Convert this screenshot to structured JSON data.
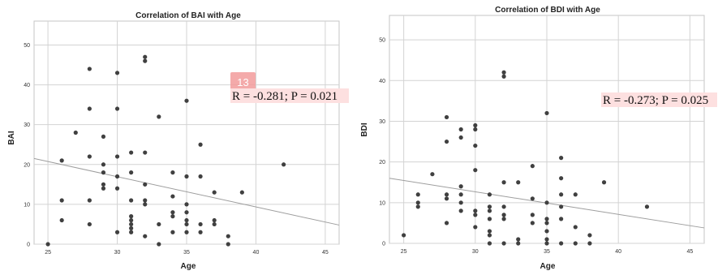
{
  "chart_data": [
    {
      "type": "scatter",
      "title": "Correlation of BAI with Age",
      "xlabel": "Age",
      "ylabel": "BAI",
      "xlim": [
        24,
        46
      ],
      "ylim": [
        0,
        56
      ],
      "xticks": [
        25,
        30,
        35,
        40,
        45
      ],
      "yticks": [
        0,
        10,
        20,
        30,
        40,
        50
      ],
      "grid": true,
      "annotation": "R = -0.281; P = 0.021",
      "marker_badge": "13",
      "fit_line": {
        "x": [
          24,
          46
        ],
        "y": [
          21.5,
          4.8
        ]
      },
      "points": [
        [
          25,
          0
        ],
        [
          26,
          21
        ],
        [
          26,
          11
        ],
        [
          26,
          6
        ],
        [
          27,
          28
        ],
        [
          28,
          44
        ],
        [
          28,
          34
        ],
        [
          28,
          22
        ],
        [
          28,
          11
        ],
        [
          28,
          5
        ],
        [
          29,
          27
        ],
        [
          29,
          20
        ],
        [
          29,
          18
        ],
        [
          29,
          15
        ],
        [
          29,
          14
        ],
        [
          30,
          43
        ],
        [
          30,
          34
        ],
        [
          30,
          22
        ],
        [
          30,
          17
        ],
        [
          30,
          14
        ],
        [
          30,
          3
        ],
        [
          31,
          23
        ],
        [
          31,
          18
        ],
        [
          31,
          11
        ],
        [
          31,
          7
        ],
        [
          31,
          6
        ],
        [
          31,
          5
        ],
        [
          31,
          4
        ],
        [
          31,
          3
        ],
        [
          32,
          47
        ],
        [
          32,
          46
        ],
        [
          32,
          23
        ],
        [
          32,
          15
        ],
        [
          32,
          11
        ],
        [
          32,
          10
        ],
        [
          32,
          2
        ],
        [
          33,
          32
        ],
        [
          33,
          5
        ],
        [
          33,
          0
        ],
        [
          34,
          18
        ],
        [
          34,
          12
        ],
        [
          34,
          8
        ],
        [
          34,
          7
        ],
        [
          34,
          3
        ],
        [
          35,
          36
        ],
        [
          35,
          17
        ],
        [
          35,
          10
        ],
        [
          35,
          8
        ],
        [
          35,
          6
        ],
        [
          35,
          5
        ],
        [
          35,
          3
        ],
        [
          36,
          25
        ],
        [
          36,
          17
        ],
        [
          36,
          5
        ],
        [
          36,
          3
        ],
        [
          37,
          13
        ],
        [
          37,
          6
        ],
        [
          37,
          5
        ],
        [
          38,
          2
        ],
        [
          38,
          0
        ],
        [
          39,
          13
        ],
        [
          42,
          20
        ]
      ]
    },
    {
      "type": "scatter",
      "title": "Correlation of BDI with Age",
      "xlabel": "Age",
      "ylabel": "BDI",
      "xlim": [
        24,
        46
      ],
      "ylim": [
        0,
        56
      ],
      "xticks": [
        25,
        30,
        35,
        40,
        45
      ],
      "yticks": [
        0,
        10,
        20,
        30,
        40,
        50
      ],
      "grid": true,
      "annotation": "R = -0.273; P = 0.025",
      "fit_line": {
        "x": [
          24,
          46
        ],
        "y": [
          16,
          3.8
        ]
      },
      "points": [
        [
          25,
          2
        ],
        [
          26,
          12
        ],
        [
          26,
          10
        ],
        [
          26,
          9
        ],
        [
          27,
          17
        ],
        [
          28,
          31
        ],
        [
          28,
          25
        ],
        [
          28,
          12
        ],
        [
          28,
          11
        ],
        [
          28,
          5
        ],
        [
          29,
          28
        ],
        [
          29,
          26
        ],
        [
          29,
          14
        ],
        [
          29,
          12
        ],
        [
          29,
          10
        ],
        [
          29,
          8
        ],
        [
          30,
          29
        ],
        [
          30,
          28
        ],
        [
          30,
          24
        ],
        [
          30,
          18
        ],
        [
          30,
          8
        ],
        [
          30,
          7
        ],
        [
          30,
          4
        ],
        [
          31,
          12
        ],
        [
          31,
          9
        ],
        [
          31,
          8
        ],
        [
          31,
          6
        ],
        [
          31,
          3
        ],
        [
          31,
          2
        ],
        [
          31,
          0
        ],
        [
          32,
          42
        ],
        [
          32,
          41
        ],
        [
          32,
          15
        ],
        [
          32,
          9
        ],
        [
          32,
          7
        ],
        [
          32,
          6
        ],
        [
          32,
          0
        ],
        [
          33,
          15
        ],
        [
          33,
          1
        ],
        [
          33,
          0
        ],
        [
          34,
          19
        ],
        [
          34,
          11
        ],
        [
          34,
          7
        ],
        [
          34,
          5
        ],
        [
          35,
          32
        ],
        [
          35,
          10
        ],
        [
          35,
          6
        ],
        [
          35,
          5
        ],
        [
          35,
          3
        ],
        [
          35,
          1
        ],
        [
          35,
          0
        ],
        [
          36,
          21
        ],
        [
          36,
          16
        ],
        [
          36,
          12
        ],
        [
          36,
          9
        ],
        [
          36,
          6
        ],
        [
          36,
          0
        ],
        [
          37,
          12
        ],
        [
          37,
          4
        ],
        [
          37,
          0
        ],
        [
          38,
          2
        ],
        [
          38,
          0
        ],
        [
          39,
          15
        ],
        [
          42,
          9
        ]
      ]
    }
  ]
}
